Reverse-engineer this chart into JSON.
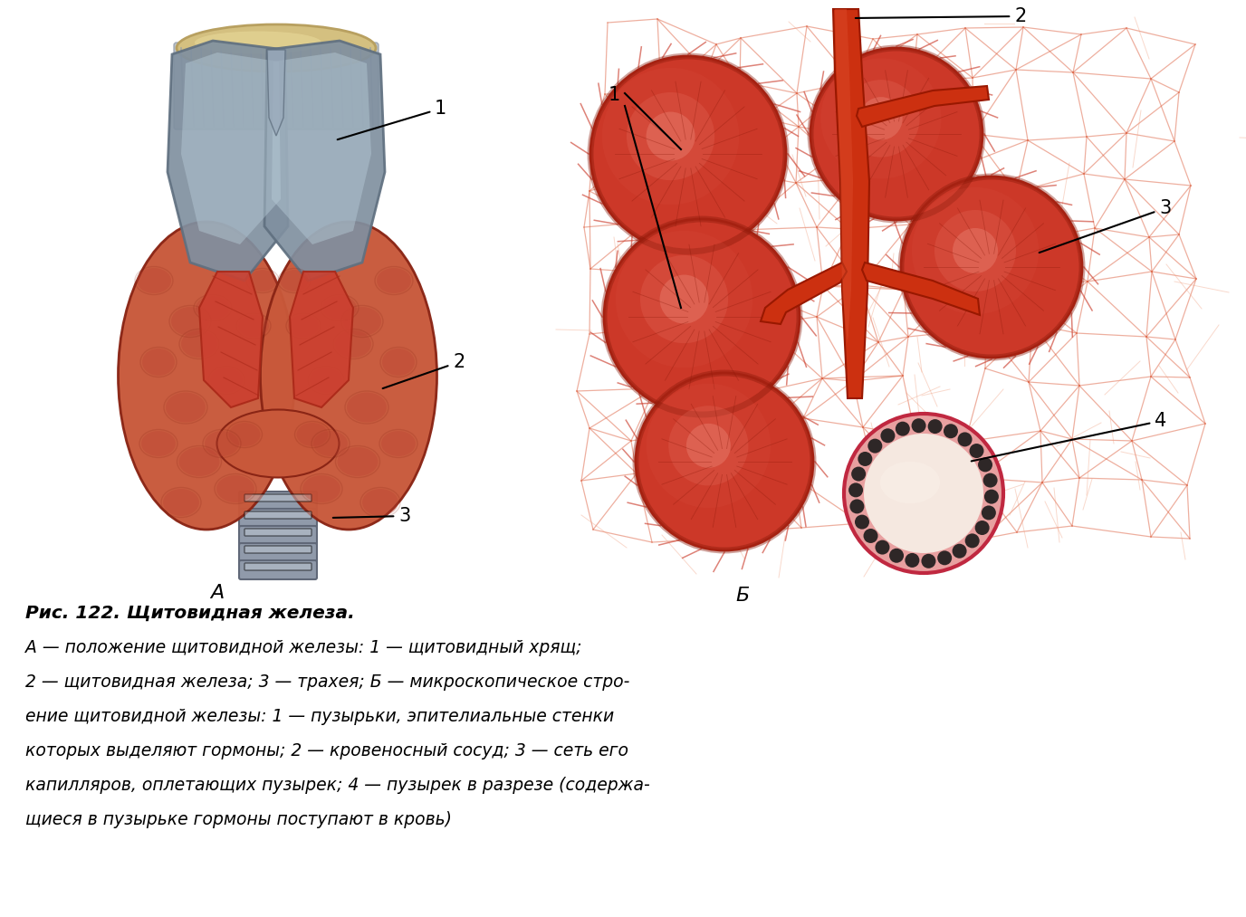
{
  "bg_color": "#ffffff",
  "figure_width": 13.76,
  "figure_height": 10.13,
  "title_bold": "Рис. 122. Щитовидная железа.",
  "caption_lines": [
    "А — положение щитовидной железы: 1 — щитовидный хрящ;",
    "2 — щитовидная железа; 3 — трахея; Б — микроскопическое стро-",
    "ение щитовидной железы: 1 — пузырьки, эпителиальные стенки",
    "которых выделяют гормоны; 2 — кровеносный сосуд; 3 — сеть его",
    "капилляров, оплетающих пузырек; 4 — пузырек в разрезе (содержа-",
    "щиеся в пузырьке гормоны поступают в кровь)"
  ],
  "label_A": "А",
  "label_B": "Б",
  "thyroid_color": "#c8583a",
  "thyroid_mid": "#b84030",
  "thyroid_dark": "#8a2515",
  "thyroid_highlight": "#d87060",
  "cartilage_color": "#8090a0",
  "cartilage_mid": "#9aaabb",
  "cartilage_light": "#b8ccd8",
  "cartilage_dark": "#607080",
  "trachea_ring": "#909aaa",
  "trachea_dark": "#606878",
  "vessel_color": "#cc3010",
  "vessel_dark": "#991800",
  "vessel_light": "#e05030",
  "follicle_color": "#cc3828",
  "follicle_mid": "#b82818",
  "follicle_dark": "#8a1808",
  "follicle_highlight": "#e05848",
  "capillary_color": "#cc4030",
  "network_color": "#dd6040",
  "network_light": "#f0a080",
  "cross_section_fill": "#f0c8c0",
  "cross_section_pink": "#e8a0a0",
  "cross_section_wall": "#c02840",
  "cross_section_dots": "#1a1a1a",
  "cross_section_inner": "#f5e8e0",
  "muscle_color": "#cc4030",
  "muscle_dark": "#aa2818",
  "bone_color": "#d4c080",
  "bone_dark": "#b8a060",
  "fibrous_color": "#b0b8c0",
  "fibrous_stripe": "#909aa8"
}
